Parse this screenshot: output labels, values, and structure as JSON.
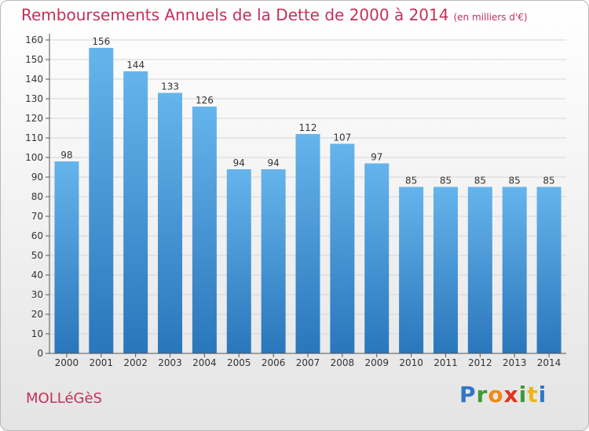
{
  "title": "Remboursements Annuels de la Dette de 2000 à 2014",
  "unit": "(en milliers d'€)",
  "commune": "MOLLéGèS",
  "brand": [
    "P",
    "r",
    "o",
    "x",
    "i",
    "t",
    "i"
  ],
  "colors": {
    "bar_top": "#66b4ec",
    "bar_bottom": "#2a76bb",
    "title": "#c4305a",
    "grid": "#d6d6d6"
  },
  "chart_data": {
    "type": "bar",
    "title": "Remboursements Annuels de la Dette de 2000 à 2014",
    "xlabel": "",
    "ylabel": "",
    "categories": [
      "2000",
      "2001",
      "2002",
      "2003",
      "2004",
      "2005",
      "2006",
      "2007",
      "2008",
      "2009",
      "2010",
      "2011",
      "2012",
      "2013",
      "2014"
    ],
    "values": [
      98,
      156,
      144,
      133,
      126,
      94,
      94,
      112,
      107,
      97,
      85,
      85,
      85,
      85,
      85
    ],
    "ylim": [
      0,
      160
    ],
    "yticks": [
      0,
      10,
      20,
      30,
      40,
      50,
      60,
      70,
      80,
      90,
      100,
      110,
      120,
      130,
      140,
      150,
      160
    ],
    "grid": true,
    "data_labels": true
  }
}
